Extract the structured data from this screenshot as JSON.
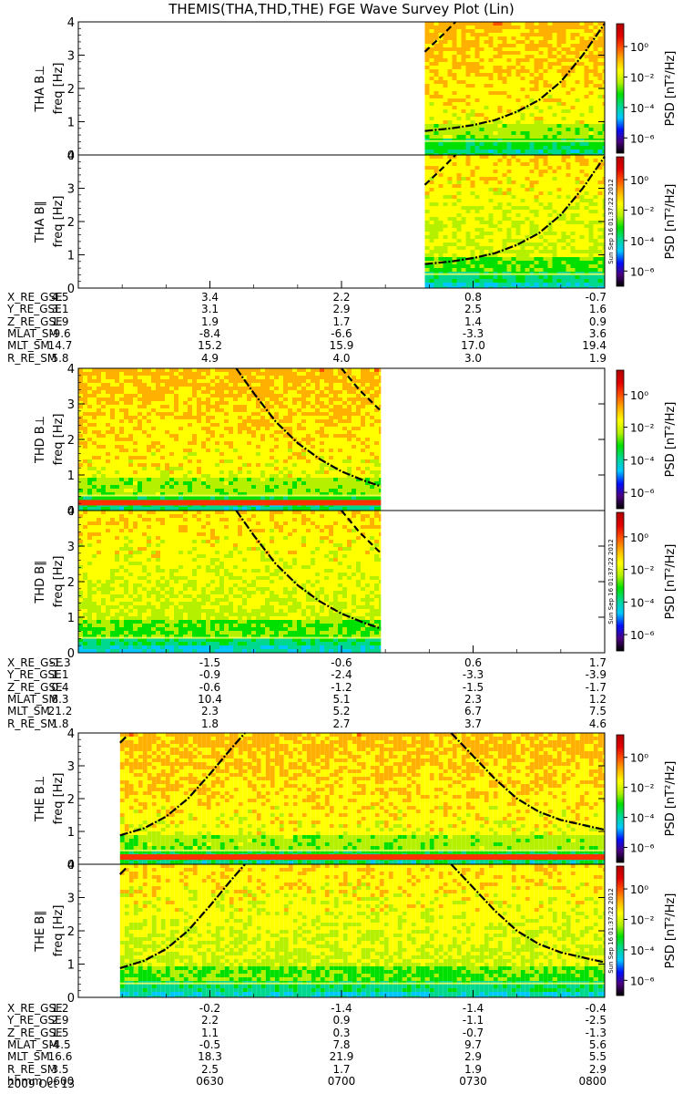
{
  "title": "THEMIS(THA,THD,THE) FGE Wave Survey Plot (Lin)",
  "date_label": "2009 Oct 13",
  "stamp": "Sun Sep 16 01:37:22 2012",
  "colorbar": {
    "label": "PSD [nT²/Hz]",
    "tick_labels": [
      "10⁰",
      "10⁻²",
      "10⁻⁴",
      "10⁻⁶"
    ],
    "log_range": [
      -7,
      1.5
    ],
    "colors": [
      "#000000",
      "#4b0080",
      "#0010ff",
      "#00c8ff",
      "#00d890",
      "#00e000",
      "#b4f000",
      "#ffff00",
      "#ffb000",
      "#ff5000",
      "#e00000",
      "#b40000"
    ]
  },
  "chart_data": {
    "type": "heatmap",
    "title": "THEMIS(THA,THD,THE) FGE Wave Survey Plot (Lin)",
    "x_ticks": [
      "0600",
      "0630",
      "0700",
      "0730",
      "0800"
    ],
    "x_axis_label": "hhmm",
    "x_range_hhmm": [
      "0600",
      "0800"
    ],
    "y_axis_label": "freq [Hz]",
    "y_range": [
      0,
      4
    ],
    "y_ticks": [
      0,
      1,
      2,
      3,
      4
    ],
    "probes": [
      {
        "name": "THA",
        "panels": [
          {
            "label": "THA B⊥",
            "data_start_min": 79,
            "data_end_min": 120,
            "strong_line": false
          },
          {
            "label": "THA B∥",
            "data_start_min": 79,
            "data_end_min": 120,
            "strong_line": false
          }
        ],
        "curves": [
          {
            "style": "dash-dot",
            "points": [
              [
                79,
                0.72
              ],
              [
                85,
                0.8
              ],
              [
                90,
                0.9
              ],
              [
                95,
                1.05
              ],
              [
                100,
                1.3
              ],
              [
                105,
                1.65
              ],
              [
                110,
                2.2
              ],
              [
                115,
                3.0
              ],
              [
                120,
                3.95
              ]
            ]
          },
          {
            "style": "dashed",
            "points": [
              [
                79,
                3.1
              ],
              [
                83,
                3.6
              ],
              [
                86,
                4.0
              ]
            ]
          }
        ],
        "ephemeris": {
          "labels": [
            "X_RE_GSE",
            "Y_RE_GSE",
            "Z_RE_GSE",
            "MLAT_SM",
            "MLT_SM",
            "R_RE_SM"
          ],
          "columns": [
            [
              "4.5",
              "3.1",
              "1.9",
              "-9.6",
              "14.7",
              "5.8"
            ],
            [
              "3.4",
              "3.1",
              "1.9",
              "-8.4",
              "15.2",
              "4.9"
            ],
            [
              "2.2",
              "2.9",
              "1.7",
              "-6.6",
              "15.9",
              "4.0"
            ],
            [
              "0.8",
              "2.5",
              "1.4",
              "-3.3",
              "17.0",
              "3.0"
            ],
            [
              "-0.7",
              "1.6",
              "0.9",
              "3.6",
              "19.4",
              "1.9"
            ]
          ]
        }
      },
      {
        "name": "THD",
        "panels": [
          {
            "label": "THD B⊥",
            "data_start_min": 0,
            "data_end_min": 69,
            "strong_line": true
          },
          {
            "label": "THD B∥",
            "data_start_min": 0,
            "data_end_min": 69,
            "strong_line": false
          }
        ],
        "curves": [
          {
            "style": "dash-dot",
            "points": [
              [
                36,
                4.0
              ],
              [
                40,
                3.3
              ],
              [
                45,
                2.5
              ],
              [
                50,
                1.9
              ],
              [
                55,
                1.45
              ],
              [
                60,
                1.1
              ],
              [
                65,
                0.85
              ],
              [
                69,
                0.68
              ]
            ]
          },
          {
            "style": "dashed",
            "points": [
              [
                60,
                4.0
              ],
              [
                64,
                3.4
              ],
              [
                69,
                2.8
              ]
            ]
          }
        ],
        "ephemeris": {
          "labels": [
            "X_RE_GSE",
            "Y_RE_GSE",
            "Z_RE_GSE",
            "MLAT_SM",
            "MLT_SM",
            "R_RE_SM"
          ],
          "columns": [
            [
              "-1.3",
              "1.1",
              "0.4",
              "8.3",
              "21.2",
              "1.8"
            ],
            [
              "-1.5",
              "-0.9",
              "-0.6",
              "10.4",
              "2.3",
              "1.8"
            ],
            [
              "-0.6",
              "-2.4",
              "-1.2",
              "5.1",
              "5.2",
              "2.7"
            ],
            [
              "0.6",
              "-3.3",
              "-1.5",
              "2.3",
              "6.7",
              "3.7"
            ],
            [
              "1.7",
              "-3.9",
              "-1.7",
              "1.2",
              "7.5",
              "4.6"
            ]
          ]
        }
      },
      {
        "name": "THE",
        "panels": [
          {
            "label": "THE B⊥",
            "data_start_min": 9.5,
            "data_end_min": 120,
            "strong_line": true
          },
          {
            "label": "THE B∥",
            "data_start_min": 9.5,
            "data_end_min": 120,
            "strong_line": false
          }
        ],
        "curves": [
          {
            "style": "dash-dot",
            "points": [
              [
                9.5,
                0.88
              ],
              [
                15,
                1.1
              ],
              [
                20,
                1.45
              ],
              [
                25,
                2.0
              ],
              [
                30,
                2.75
              ],
              [
                35,
                3.55
              ],
              [
                38,
                4.0
              ]
            ]
          },
          {
            "style": "dash-dot",
            "points": [
              [
                85,
                4.0
              ],
              [
                90,
                3.3
              ],
              [
                95,
                2.6
              ],
              [
                100,
                2.0
              ],
              [
                105,
                1.6
              ],
              [
                110,
                1.35
              ],
              [
                115,
                1.2
              ],
              [
                120,
                1.05
              ]
            ]
          },
          {
            "style": "dash-dot",
            "points": [
              [
                9.5,
                3.7
              ],
              [
                11,
                3.9
              ]
            ]
          }
        ],
        "ephemeris": {
          "labels": [
            "X_RE_GSE",
            "Y_RE_GSE",
            "Z_RE_GSE",
            "MLAT_SM",
            "MLT_SM",
            "R_RE_SM",
            "hhmm"
          ],
          "columns": [
            [
              "1.2",
              "2.9",
              "1.5",
              "-4.5",
              "16.6",
              "3.5",
              "0600"
            ],
            [
              "-0.2",
              "2.2",
              "1.1",
              "-0.5",
              "18.3",
              "2.5",
              "0630"
            ],
            [
              "-1.4",
              "0.9",
              "0.3",
              "7.8",
              "21.9",
              "1.7",
              "0700"
            ],
            [
              "-1.4",
              "-1.1",
              "-0.7",
              "9.7",
              "2.9",
              "1.9",
              "0730"
            ],
            [
              "-0.4",
              "-2.5",
              "-1.3",
              "5.6",
              "5.5",
              "2.9",
              "0800"
            ]
          ]
        }
      }
    ]
  }
}
